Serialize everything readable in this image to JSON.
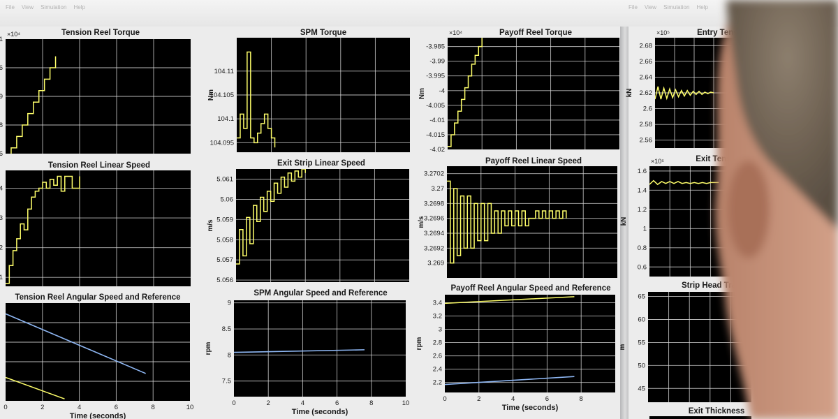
{
  "window": {
    "menu_items": [
      "File",
      "View",
      "Simulation",
      "Help"
    ]
  },
  "colors": {
    "axes_background": "#000000",
    "grid": "#d8d8d8",
    "series_yellow": "#ffff6a",
    "series_blue": "#8fb8f5",
    "window_background": "#ececec"
  },
  "chart_data": [
    {
      "id": "tension-reel-torque",
      "type": "line",
      "title": "Tension Reel Torque",
      "exponent": "×10⁴",
      "ylabel": "",
      "xlabel": "",
      "xlim": [
        0,
        10
      ],
      "ylim": [
        5.7,
        6.1
      ],
      "y_ticks": [
        {
          "v": 5.8,
          "label": "8"
        },
        {
          "v": 5.9,
          "label": ".9"
        },
        {
          "v": 6.0,
          "label": "6"
        },
        {
          "v": 6.1,
          "label": "1"
        },
        {
          "v": 5.7,
          "label": "6"
        }
      ],
      "x_ticks": [],
      "grid": true,
      "series": [
        {
          "color": "yellow",
          "step": true,
          "x": [
            0,
            0.3,
            0.6,
            0.9,
            1.2,
            1.5,
            1.8,
            2.1,
            2.4,
            2.7
          ],
          "y": [
            5.68,
            5.72,
            5.76,
            5.8,
            5.84,
            5.88,
            5.92,
            5.96,
            6.0,
            6.04
          ]
        }
      ]
    },
    {
      "id": "spm-torque",
      "type": "line",
      "title": "SPM Torque",
      "ylabel": "Nm",
      "xlabel": "",
      "xlim": [
        0,
        10
      ],
      "ylim": [
        104.093,
        104.117
      ],
      "y_ticks": [
        {
          "v": 104.095,
          "label": "104.095"
        },
        {
          "v": 104.1,
          "label": "104.1"
        },
        {
          "v": 104.105,
          "label": "104.105"
        },
        {
          "v": 104.11,
          "label": "104.11"
        }
      ],
      "x_ticks": [],
      "grid": true,
      "series": [
        {
          "color": "yellow",
          "step": true,
          "x": [
            0,
            0.2,
            0.4,
            0.6,
            0.8,
            1.0,
            1.2,
            1.4,
            1.6,
            1.8,
            2.0,
            2.2
          ],
          "y": [
            104.096,
            104.101,
            104.098,
            104.114,
            104.096,
            104.095,
            104.097,
            104.099,
            104.101,
            104.098,
            104.096,
            104.094
          ]
        }
      ]
    },
    {
      "id": "payoff-reel-torque",
      "type": "line",
      "title": "Payoff Reel Torque",
      "exponent": "×10⁴",
      "ylabel": "Nm",
      "xlabel": "",
      "xlim": [
        0,
        10
      ],
      "ylim": [
        -4.02,
        -3.982
      ],
      "y_ticks": [
        {
          "v": -3.985,
          "label": "-3.985"
        },
        {
          "v": -3.99,
          "label": "-3.99"
        },
        {
          "v": -3.995,
          "label": "-3.995"
        },
        {
          "v": -4.0,
          "label": "-4"
        },
        {
          "v": -4.005,
          "label": "-4.005"
        },
        {
          "v": -4.01,
          "label": "-4.01"
        },
        {
          "v": -4.015,
          "label": "-4.015"
        },
        {
          "v": -4.02,
          "label": "-4.02"
        }
      ],
      "x_ticks": [],
      "grid": true,
      "series": [
        {
          "color": "yellow",
          "step": true,
          "x": [
            0,
            0.2,
            0.4,
            0.6,
            0.8,
            1.0,
            1.2,
            1.4,
            1.6,
            1.8,
            2.0
          ],
          "y": [
            -4.019,
            -4.015,
            -4.011,
            -4.007,
            -4.003,
            -3.999,
            -3.995,
            -3.991,
            -3.988,
            -3.985,
            -3.982
          ]
        }
      ]
    },
    {
      "id": "entry-tension",
      "type": "line",
      "title": "Entry Tension",
      "exponent": "×10⁵",
      "ylabel": "kN",
      "xlabel": "",
      "xlim": [
        0,
        10
      ],
      "ylim": [
        2.55,
        2.69
      ],
      "y_ticks": [
        {
          "v": 2.56,
          "label": "2.56"
        },
        {
          "v": 2.58,
          "label": "2.58"
        },
        {
          "v": 2.6,
          "label": "2.6"
        },
        {
          "v": 2.62,
          "label": "2.62"
        },
        {
          "v": 2.64,
          "label": "2.64"
        },
        {
          "v": 2.66,
          "label": "2.66"
        },
        {
          "v": 2.68,
          "label": "2.68"
        }
      ],
      "x_ticks": [],
      "grid": true,
      "series": [
        {
          "color": "yellow",
          "step": false,
          "x": [
            0,
            0.3,
            0.6,
            0.9,
            1.2,
            1.5,
            1.8,
            2.1,
            2.4,
            2.7,
            3.0,
            3.3,
            3.6,
            3.9,
            4.2,
            4.5,
            4.8,
            5.1,
            5.4,
            5.7,
            6.0
          ],
          "y": [
            2.612,
            2.628,
            2.612,
            2.626,
            2.613,
            2.625,
            2.614,
            2.624,
            2.615,
            2.623,
            2.616,
            2.623,
            2.617,
            2.622,
            2.618,
            2.622,
            2.618,
            2.621,
            2.619,
            2.621,
            2.62
          ]
        }
      ]
    },
    {
      "id": "tension-reel-linear-speed",
      "type": "line",
      "title": "Tension Reel Linear Speed",
      "ylabel": "",
      "xlabel": "",
      "xlim": [
        0,
        10
      ],
      "ylim": [
        0.7,
        4.6
      ],
      "y_ticks": [
        {
          "v": 4,
          "label": "4"
        },
        {
          "v": 3,
          "label": "3"
        },
        {
          "v": 2,
          "label": "2"
        },
        {
          "v": 1,
          "label": "1"
        }
      ],
      "x_ticks": [],
      "grid": true,
      "series": [
        {
          "color": "yellow",
          "step": true,
          "x": [
            0,
            0.2,
            0.4,
            0.6,
            0.8,
            1.0,
            1.2,
            1.4,
            1.6,
            1.8,
            2.0,
            2.2,
            2.4,
            2.6,
            2.8,
            3.0,
            3.2,
            3.4,
            3.6,
            3.8,
            4.0
          ],
          "y": [
            0.8,
            1.4,
            1.9,
            2.3,
            2.8,
            2.6,
            3.3,
            3.7,
            3.9,
            4.0,
            4.2,
            4.0,
            4.3,
            4.1,
            4.4,
            3.9,
            4.4,
            4.4,
            4.0,
            4.0,
            4.4
          ]
        }
      ]
    },
    {
      "id": "exit-strip-linear-speed",
      "type": "line",
      "title": "Exit Strip Linear Speed",
      "ylabel": "m/s",
      "xlabel": "",
      "xlim": [
        0,
        10
      ],
      "ylim": [
        5.0559,
        5.0615
      ],
      "y_ticks": [
        {
          "v": 5.056,
          "label": "5.056"
        },
        {
          "v": 5.057,
          "label": "5.057"
        },
        {
          "v": 5.058,
          "label": "5.058"
        },
        {
          "v": 5.059,
          "label": "5.059"
        },
        {
          "v": 5.06,
          "label": "5.06"
        },
        {
          "v": 5.061,
          "label": "5.061"
        }
      ],
      "x_ticks": [],
      "grid": true,
      "series": [
        {
          "color": "yellow",
          "step": true,
          "x": [
            0,
            0.2,
            0.4,
            0.6,
            0.8,
            1.0,
            1.2,
            1.4,
            1.6,
            1.8,
            2.0,
            2.2,
            2.4,
            2.6,
            2.8,
            3.0,
            3.2,
            3.4,
            3.6,
            3.8,
            4.0
          ],
          "y": [
            5.0568,
            5.0585,
            5.0572,
            5.0591,
            5.0578,
            5.0597,
            5.0589,
            5.0601,
            5.0594,
            5.0604,
            5.0599,
            5.0608,
            5.0603,
            5.0611,
            5.0606,
            5.0613,
            5.0609,
            5.0614,
            5.0611,
            5.0615,
            5.0613
          ]
        }
      ]
    },
    {
      "id": "payoff-reel-linear-speed",
      "type": "line",
      "title": "Payoff Reel Linear Speed",
      "ylabel": "m/s",
      "xlabel": "",
      "xlim": [
        0,
        10
      ],
      "ylim": [
        3.2688,
        3.2703
      ],
      "y_ticks": [
        {
          "v": 3.269,
          "label": "3.269"
        },
        {
          "v": 3.2692,
          "label": "3.2692"
        },
        {
          "v": 3.2694,
          "label": "3.2694"
        },
        {
          "v": 3.2696,
          "label": "3.2696"
        },
        {
          "v": 3.2698,
          "label": "3.2698"
        },
        {
          "v": 3.27,
          "label": "3.27"
        },
        {
          "v": 3.2702,
          "label": "3.2702"
        }
      ],
      "x_ticks": [],
      "grid": true,
      "series": [
        {
          "color": "yellow",
          "step": true,
          "x": [
            0,
            0.2,
            0.4,
            0.6,
            0.8,
            1.0,
            1.2,
            1.4,
            1.6,
            1.8,
            2.0,
            2.2,
            2.4,
            2.6,
            2.8,
            3.0,
            3.2,
            3.4,
            3.6,
            3.8,
            4.0,
            4.2,
            4.4,
            4.6,
            4.8,
            5.0,
            5.2,
            5.4,
            5.6,
            5.8,
            6.0,
            6.2,
            6.4,
            6.6,
            6.8,
            7.0
          ],
          "y": [
            3.2701,
            3.269,
            3.27,
            3.2691,
            3.2699,
            3.2692,
            3.2699,
            3.2692,
            3.2698,
            3.2693,
            3.2698,
            3.2693,
            3.2698,
            3.2694,
            3.2697,
            3.2694,
            3.2697,
            3.2695,
            3.2697,
            3.2695,
            3.2697,
            3.2695,
            3.2697,
            3.2695,
            3.2696,
            3.2696,
            3.2697,
            3.2696,
            3.2697,
            3.2696,
            3.2697,
            3.2696,
            3.2697,
            3.2696,
            3.2697,
            3.2696
          ]
        }
      ]
    },
    {
      "id": "exit-tension",
      "type": "line",
      "title": "Exit Tension",
      "exponent": "×10⁵",
      "ylabel": "kN",
      "xlabel": "",
      "xlim": [
        0,
        10
      ],
      "ylim": [
        0.5,
        1.65
      ],
      "y_ticks": [
        {
          "v": 1.6,
          "label": "1.6"
        },
        {
          "v": 1.4,
          "label": "1.4"
        },
        {
          "v": 1.2,
          "label": "1.2"
        },
        {
          "v": 1.0,
          "label": "1"
        },
        {
          "v": 0.8,
          "label": "0.8"
        },
        {
          "v": 0.6,
          "label": "0.6"
        }
      ],
      "x_ticks": [],
      "grid": true,
      "series": [
        {
          "color": "yellow",
          "step": false,
          "x": [
            0,
            0.4,
            0.8,
            1.2,
            1.6,
            2.0,
            2.4,
            2.8,
            3.2,
            3.6,
            4.0,
            4.4,
            4.8,
            5.2,
            5.6,
            6.0,
            6.4,
            6.8
          ],
          "y": [
            1.46,
            1.5,
            1.46,
            1.49,
            1.47,
            1.49,
            1.47,
            1.49,
            1.47,
            1.48,
            1.47,
            1.48,
            1.47,
            1.48,
            1.47,
            1.48,
            1.48,
            1.48
          ]
        }
      ]
    },
    {
      "id": "tension-reel-angular-speed",
      "type": "line",
      "title": "Tension Reel Angular Speed and Reference",
      "ylabel": "",
      "xlabel": "Time (seconds)",
      "xlim": [
        0,
        10
      ],
      "ylim": [
        0,
        10
      ],
      "y_ticks": [],
      "x_ticks": [
        {
          "v": 0,
          "label": "0"
        },
        {
          "v": 2,
          "label": "2"
        },
        {
          "v": 4,
          "label": "4"
        },
        {
          "v": 6,
          "label": "6"
        },
        {
          "v": 8,
          "label": "8"
        },
        {
          "v": 10,
          "label": "10"
        }
      ],
      "grid": true,
      "series": [
        {
          "color": "blue",
          "step": false,
          "x": [
            0,
            7.6
          ],
          "y": [
            8.9,
            2.8
          ]
        },
        {
          "color": "yellow",
          "step": false,
          "x": [
            0,
            3.2
          ],
          "y": [
            2.4,
            0.2
          ]
        }
      ]
    },
    {
      "id": "spm-angular-speed",
      "type": "line",
      "title": "SPM Angular Speed and Reference",
      "ylabel": "rpm",
      "xlabel": "Time (seconds)",
      "xlim": [
        0,
        10
      ],
      "ylim": [
        7.2,
        9.05
      ],
      "y_ticks": [
        {
          "v": 9,
          "label": "9"
        },
        {
          "v": 8.5,
          "label": "8.5"
        },
        {
          "v": 8,
          "label": "8"
        },
        {
          "v": 7.5,
          "label": "7.5"
        }
      ],
      "x_ticks": [
        {
          "v": 0,
          "label": "0"
        },
        {
          "v": 2,
          "label": "2"
        },
        {
          "v": 4,
          "label": "4"
        },
        {
          "v": 6,
          "label": "6"
        },
        {
          "v": 8,
          "label": "8"
        },
        {
          "v": 10,
          "label": "10"
        }
      ],
      "grid": true,
      "series": [
        {
          "color": "blue",
          "step": false,
          "x": [
            0,
            7.6
          ],
          "y": [
            8.05,
            8.1
          ]
        }
      ]
    },
    {
      "id": "payoff-reel-angular-speed",
      "type": "line",
      "title": "Payoff Reel Angular Speed and Reference",
      "ylabel": "rpm",
      "xlabel": "Time (seconds)",
      "xlim": [
        0,
        10
      ],
      "ylim": [
        2.05,
        3.52
      ],
      "y_ticks": [
        {
          "v": 3.4,
          "label": "3.4"
        },
        {
          "v": 3.2,
          "label": "3.2"
        },
        {
          "v": 3.0,
          "label": "3"
        },
        {
          "v": 2.8,
          "label": "2.8"
        },
        {
          "v": 2.6,
          "label": "2.6"
        },
        {
          "v": 2.4,
          "label": "2.4"
        },
        {
          "v": 2.2,
          "label": "2.2"
        }
      ],
      "x_ticks": [
        {
          "v": 0,
          "label": "0"
        },
        {
          "v": 2,
          "label": "2"
        },
        {
          "v": 4,
          "label": "4"
        },
        {
          "v": 6,
          "label": "6"
        },
        {
          "v": 8,
          "label": "8"
        }
      ],
      "grid": true,
      "series": [
        {
          "color": "yellow",
          "step": false,
          "x": [
            0,
            7.6
          ],
          "y": [
            3.39,
            3.49
          ]
        },
        {
          "color": "blue",
          "step": false,
          "x": [
            0,
            7.6
          ],
          "y": [
            2.17,
            2.29
          ]
        }
      ]
    },
    {
      "id": "strip-head-tracking",
      "type": "line",
      "title": "Strip Head Tracking",
      "ylabel": "m",
      "xlabel": "",
      "xlim": [
        0,
        10
      ],
      "ylim": [
        42,
        66
      ],
      "y_ticks": [
        {
          "v": 65,
          "label": "65"
        },
        {
          "v": 60,
          "label": "60"
        },
        {
          "v": 55,
          "label": "55"
        },
        {
          "v": 50,
          "label": "50"
        },
        {
          "v": 45,
          "label": "45"
        }
      ],
      "x_ticks": [],
      "grid": true,
      "series": []
    },
    {
      "id": "exit-thickness",
      "type": "line",
      "title": "Exit Thickness",
      "ylabel": "",
      "xlabel": "",
      "xlim": [
        0,
        10
      ],
      "ylim": [
        0,
        1
      ],
      "y_ticks": [],
      "x_ticks": [],
      "grid": false,
      "series": []
    }
  ]
}
